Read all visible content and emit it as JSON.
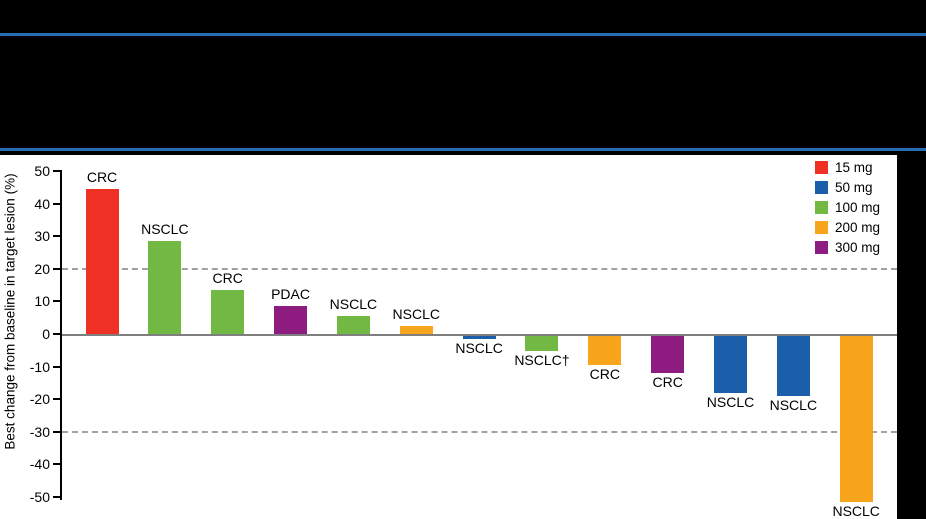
{
  "page": {
    "background": "#000000",
    "divider_color": "#2A6BB4"
  },
  "chart_data": {
    "type": "bar",
    "subtype": "waterfall",
    "title": "",
    "ylabel": "Best change from baseline in target lesion (%)",
    "ylim": [
      -50,
      50
    ],
    "yticks": [
      "50",
      "40",
      "30",
      "20",
      "10",
      "0",
      "-10",
      "-20",
      "-30",
      "-40",
      "-50"
    ],
    "reference_lines": [
      20,
      -30
    ],
    "grid": "dashed-reference-lines-only",
    "legend_position": "top-right",
    "legend": [
      {
        "label": "15 mg",
        "color": "#EE3124"
      },
      {
        "label": "50 mg",
        "color": "#1B5EA9"
      },
      {
        "label": "100 mg",
        "color": "#72B944"
      },
      {
        "label": "200 mg",
        "color": "#F9A51B"
      },
      {
        "label": "300 mg",
        "color": "#8E1B80"
      }
    ],
    "bars": [
      {
        "label": "CRC",
        "dose": "15 mg",
        "value": 44.5
      },
      {
        "label": "NSCLC",
        "dose": "100 mg",
        "value": 28.5
      },
      {
        "label": "CRC",
        "dose": "100 mg",
        "value": 13.5
      },
      {
        "label": "PDAC",
        "dose": "300 mg",
        "value": 8.5
      },
      {
        "label": "NSCLC",
        "dose": "100 mg",
        "value": 5.5
      },
      {
        "label": "NSCLC",
        "dose": "200 mg",
        "value": 2.5
      },
      {
        "label": "NSCLC",
        "dose": "50 mg",
        "value": -1
      },
      {
        "label": "NSCLC†",
        "dose": "100 mg",
        "value": -4.5
      },
      {
        "label": "CRC",
        "dose": "200 mg",
        "value": -9
      },
      {
        "label": "CRC",
        "dose": "300 mg",
        "value": -11.5
      },
      {
        "label": "NSCLC",
        "dose": "50 mg",
        "value": -17.5
      },
      {
        "label": "NSCLC",
        "dose": "50 mg",
        "value": -18.5
      },
      {
        "label": "NSCLC",
        "dose": "200 mg",
        "value": -51
      }
    ],
    "zero_line_color": "#7F7F7F",
    "reference_line_color": "#A0A0A0",
    "axis_color": "#000000"
  }
}
